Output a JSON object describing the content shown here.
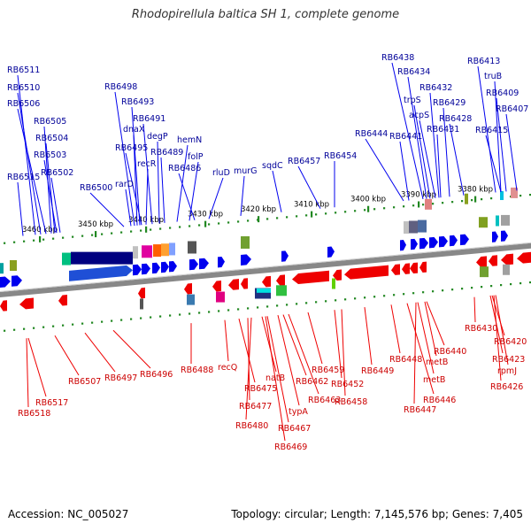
{
  "title": "Rhodopirellula baltica SH 1, complete genome",
  "footer": {
    "accession": "Accession: NC_005027",
    "info": "Topology: circular; Length: 7,145,576 bp; Genes: 7,405"
  },
  "colors": {
    "forward_gene": "#0000ee",
    "reverse_gene": "#ee0000",
    "forward_label": "#000099",
    "reverse_label": "#cc0000",
    "backbone": "#888888",
    "tick": "#228822"
  },
  "scale_labels": [
    "3460 kbp",
    "3450 kbp",
    "3440 kbp",
    "3430 kbp",
    "3420 kbp",
    "3410 kbp",
    "3400 kbp",
    "3390 kbp",
    "3380 kbp"
  ],
  "forward_labels": [
    "RB6511",
    "RB6510",
    "RB6506",
    "RB6505",
    "RB6504",
    "RB6503",
    "RB6502",
    "RB6515",
    "RB6500",
    "rarD",
    "RB6498",
    "dnaX",
    "RB6495",
    "RB6493",
    "recR",
    "RB6491",
    "degP",
    "RB6489",
    "hemN",
    "folP",
    "RB6486",
    "rluD",
    "murG",
    "sqdC",
    "RB6457",
    "RB6454",
    "RB6444",
    "RB6441",
    "RB6438",
    "RB6434",
    "trpS",
    "acpS",
    "RB6432",
    "RB6431",
    "RB6429",
    "RB6428",
    "RB6413",
    "truB",
    "RB6409",
    "RB6415",
    "RB6407"
  ],
  "reverse_labels": [
    "RB6507",
    "RB6517",
    "RB6518",
    "RB6497",
    "RB6496",
    "RB6488",
    "recQ",
    "RB6475",
    "RB6477",
    "RB6480",
    "natB",
    "RB6462",
    "RB6463",
    "typA",
    "RB6467",
    "RB6469",
    "RB6459",
    "RB6452",
    "RB6458",
    "RB6449",
    "RB6448",
    "RB6447",
    "metB",
    "RB6446",
    "metB",
    "RB6440",
    "RB6430",
    "RB6420",
    "RB6423",
    "rpmJ",
    "RB6426"
  ]
}
